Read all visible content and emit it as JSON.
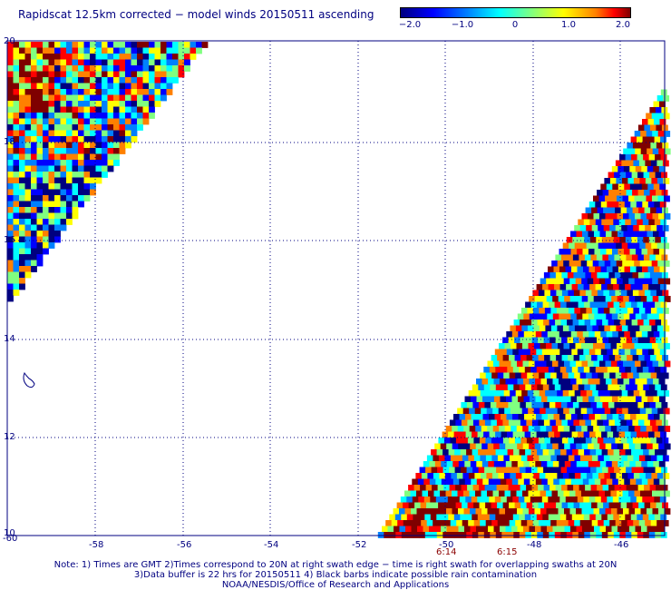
{
  "title": "Rapidscat 12.5km corrected − model winds 20150511 ascending",
  "colorbar": {
    "ticks": [
      "−2.0",
      "−1.0",
      "0",
      "1.0",
      "2.0"
    ],
    "colors": [
      "#00007f",
      "#0000ff",
      "#0080ff",
      "#00ffff",
      "#80ff80",
      "#ffff00",
      "#ff8000",
      "#ff0000",
      "#7f0000"
    ]
  },
  "map": {
    "lon_labels": [
      "-60",
      "-58",
      "-56",
      "-54",
      "-52",
      "-50",
      "-48",
      "-46"
    ],
    "lat_labels": [
      "20",
      "18",
      "16",
      "14",
      "12",
      "10"
    ],
    "swath_times": [
      "6:14",
      "6:15"
    ]
  },
  "notes": [
    "Note: 1) Times are GMT 2)Times correspond to 20N at right swath edge − time is right swath for overlapping swaths at 20N",
    "3)Data buffer is 22 hrs for 20150511 4) Black barbs indicate possible rain contamination",
    "NOAA/NESDIS/Office of Research and Applications"
  ]
}
